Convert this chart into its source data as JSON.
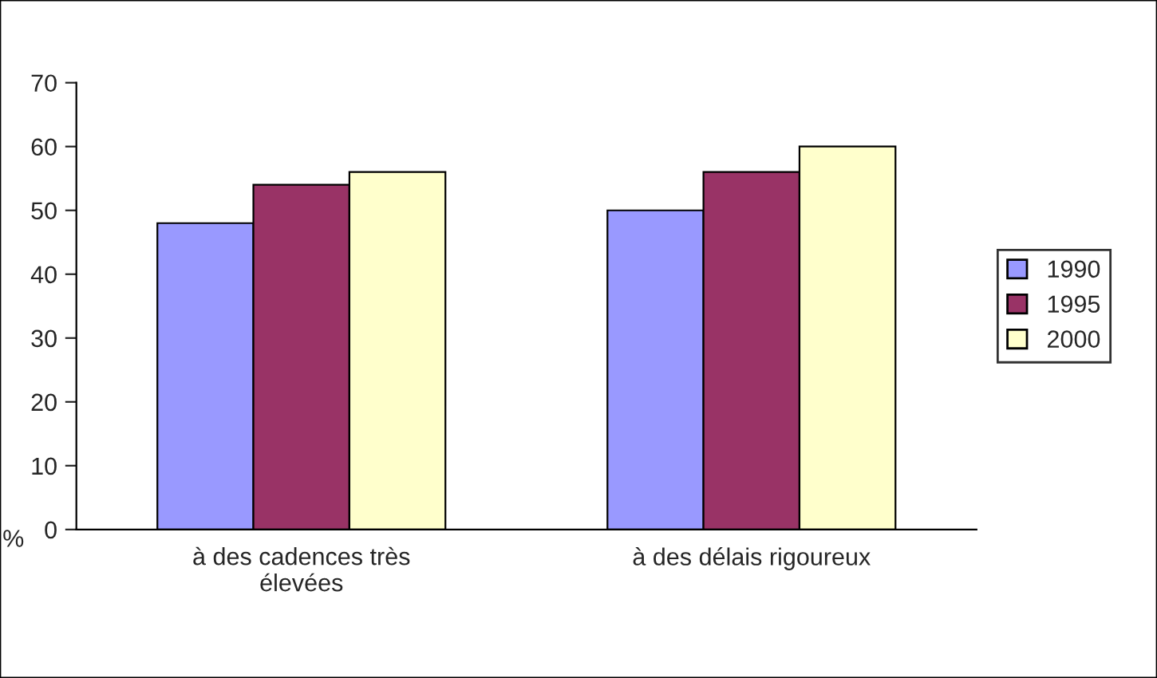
{
  "chart_data": {
    "type": "bar",
    "ylabel": "%",
    "categories": [
      "à des cadences très\nélevées",
      "à des délais rigoureux"
    ],
    "series": [
      {
        "name": "1990",
        "color": "#9999ff",
        "values": [
          48,
          50
        ]
      },
      {
        "name": "1995",
        "color": "#993366",
        "values": [
          54,
          56
        ]
      },
      {
        "name": "2000",
        "color": "#ffffcc",
        "values": [
          56,
          60
        ]
      }
    ],
    "ylim": [
      0,
      70
    ],
    "yticks": [
      0,
      10,
      20,
      30,
      40,
      50,
      60,
      70
    ],
    "grid": false,
    "legend": "right"
  }
}
